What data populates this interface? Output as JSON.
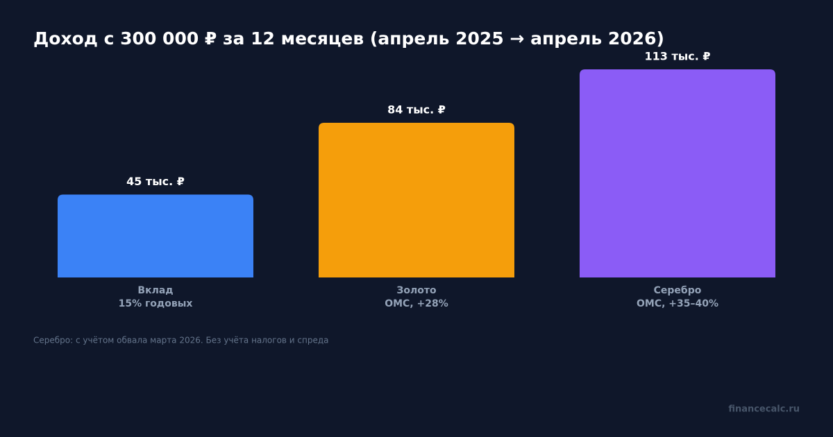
{
  "chart_data": {
    "type": "bar",
    "title": "Доход с 300 000 ₽ за 12 месяцев (апрель 2025 → апрель 2026)",
    "categories": [
      "Вклад",
      "Золото",
      "Серебро"
    ],
    "category_details": [
      "15% годовых",
      "ОМС, +28%",
      "ОМС, +35–40%"
    ],
    "values": [
      45,
      84,
      113
    ],
    "value_labels": [
      "45 тыс. ₽",
      "84 тыс. ₽",
      "113 тыс. ₽"
    ],
    "colors": [
      "#3b82f6",
      "#f59e0b",
      "#8b5cf6"
    ],
    "footnote": "Серебро: с учётом обвала марта 2026. Без учёта налогов и спреда",
    "source": "financecalc.ru"
  }
}
